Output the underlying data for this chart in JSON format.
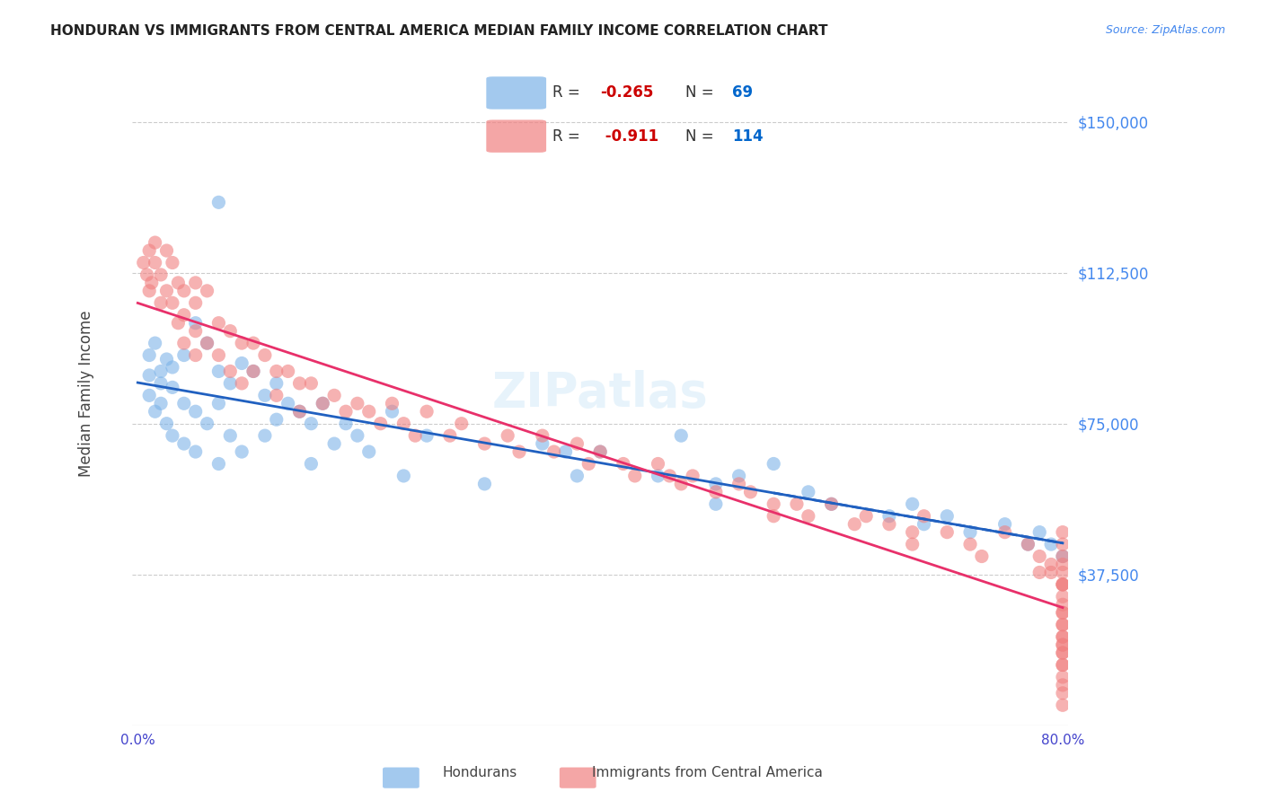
{
  "title": "HONDURAN VS IMMIGRANTS FROM CENTRAL AMERICA MEDIAN FAMILY INCOME CORRELATION CHART",
  "source": "Source: ZipAtlas.com",
  "xlabel": "",
  "ylabel": "Median Family Income",
  "xlim": [
    0.0,
    0.8
  ],
  "ylim": [
    0,
    165000
  ],
  "yticks": [
    0,
    37500,
    75000,
    112500,
    150000
  ],
  "ytick_labels": [
    "",
    "$37,500",
    "$75,000",
    "$112,500",
    "$150,000"
  ],
  "xticks": [
    0.0,
    0.1,
    0.2,
    0.3,
    0.4,
    0.5,
    0.6,
    0.7,
    0.8
  ],
  "xtick_labels": [
    "0.0%",
    "",
    "",
    "",
    "",
    "",
    "",
    "",
    "80.0%"
  ],
  "legend_R_blue": "-0.265",
  "legend_N_blue": "69",
  "legend_R_pink": "-0.911",
  "legend_N_pink": "114",
  "blue_color": "#7db3e8",
  "pink_color": "#f08080",
  "line_blue": "#2060c0",
  "line_pink": "#e8306a",
  "watermark": "ZIPatlas",
  "blue_scatter_x": [
    0.01,
    0.01,
    0.01,
    0.015,
    0.015,
    0.02,
    0.02,
    0.02,
    0.025,
    0.025,
    0.03,
    0.03,
    0.03,
    0.04,
    0.04,
    0.04,
    0.05,
    0.05,
    0.05,
    0.06,
    0.06,
    0.07,
    0.07,
    0.07,
    0.07,
    0.08,
    0.08,
    0.09,
    0.09,
    0.1,
    0.11,
    0.11,
    0.12,
    0.12,
    0.13,
    0.14,
    0.15,
    0.15,
    0.16,
    0.17,
    0.18,
    0.19,
    0.2,
    0.22,
    0.23,
    0.25,
    0.3,
    0.35,
    0.37,
    0.38,
    0.4,
    0.45,
    0.47,
    0.5,
    0.5,
    0.52,
    0.55,
    0.58,
    0.6,
    0.65,
    0.67,
    0.68,
    0.7,
    0.72,
    0.75,
    0.77,
    0.78,
    0.79,
    0.8
  ],
  "blue_scatter_y": [
    92000,
    87000,
    82000,
    95000,
    78000,
    88000,
    85000,
    80000,
    91000,
    75000,
    89000,
    84000,
    72000,
    92000,
    80000,
    70000,
    100000,
    78000,
    68000,
    95000,
    75000,
    130000,
    88000,
    80000,
    65000,
    85000,
    72000,
    90000,
    68000,
    88000,
    82000,
    72000,
    85000,
    76000,
    80000,
    78000,
    75000,
    65000,
    80000,
    70000,
    75000,
    72000,
    68000,
    78000,
    62000,
    72000,
    60000,
    70000,
    68000,
    62000,
    68000,
    62000,
    72000,
    60000,
    55000,
    62000,
    65000,
    58000,
    55000,
    52000,
    55000,
    50000,
    52000,
    48000,
    50000,
    45000,
    48000,
    45000,
    42000
  ],
  "pink_scatter_x": [
    0.005,
    0.008,
    0.01,
    0.01,
    0.012,
    0.015,
    0.015,
    0.02,
    0.02,
    0.025,
    0.025,
    0.03,
    0.03,
    0.035,
    0.035,
    0.04,
    0.04,
    0.04,
    0.05,
    0.05,
    0.05,
    0.05,
    0.06,
    0.06,
    0.07,
    0.07,
    0.08,
    0.08,
    0.09,
    0.09,
    0.1,
    0.1,
    0.11,
    0.12,
    0.12,
    0.13,
    0.14,
    0.14,
    0.15,
    0.16,
    0.17,
    0.18,
    0.19,
    0.2,
    0.21,
    0.22,
    0.23,
    0.24,
    0.25,
    0.27,
    0.28,
    0.3,
    0.32,
    0.33,
    0.35,
    0.36,
    0.38,
    0.39,
    0.4,
    0.42,
    0.43,
    0.45,
    0.46,
    0.47,
    0.48,
    0.5,
    0.52,
    0.53,
    0.55,
    0.55,
    0.57,
    0.58,
    0.6,
    0.62,
    0.63,
    0.65,
    0.67,
    0.67,
    0.68,
    0.7,
    0.72,
    0.73,
    0.75,
    0.77,
    0.78,
    0.78,
    0.79,
    0.79,
    0.8,
    0.8,
    0.8,
    0.8,
    0.8,
    0.8,
    0.8,
    0.8,
    0.8,
    0.8,
    0.8,
    0.8,
    0.8,
    0.8,
    0.8,
    0.8,
    0.8,
    0.8,
    0.8,
    0.8,
    0.8,
    0.8,
    0.8,
    0.8,
    0.8,
    0.8
  ],
  "pink_scatter_y": [
    115000,
    112000,
    118000,
    108000,
    110000,
    120000,
    115000,
    112000,
    105000,
    118000,
    108000,
    115000,
    105000,
    110000,
    100000,
    108000,
    102000,
    95000,
    110000,
    105000,
    98000,
    92000,
    108000,
    95000,
    100000,
    92000,
    98000,
    88000,
    95000,
    85000,
    95000,
    88000,
    92000,
    88000,
    82000,
    88000,
    85000,
    78000,
    85000,
    80000,
    82000,
    78000,
    80000,
    78000,
    75000,
    80000,
    75000,
    72000,
    78000,
    72000,
    75000,
    70000,
    72000,
    68000,
    72000,
    68000,
    70000,
    65000,
    68000,
    65000,
    62000,
    65000,
    62000,
    60000,
    62000,
    58000,
    60000,
    58000,
    55000,
    52000,
    55000,
    52000,
    55000,
    50000,
    52000,
    50000,
    48000,
    45000,
    52000,
    48000,
    45000,
    42000,
    48000,
    45000,
    42000,
    38000,
    40000,
    38000,
    35000,
    32000,
    28000,
    22000,
    25000,
    20000,
    18000,
    15000,
    42000,
    38000,
    35000,
    30000,
    28000,
    25000,
    22000,
    20000,
    18000,
    15000,
    12000,
    10000,
    8000,
    5000,
    48000,
    45000,
    40000,
    35000
  ]
}
